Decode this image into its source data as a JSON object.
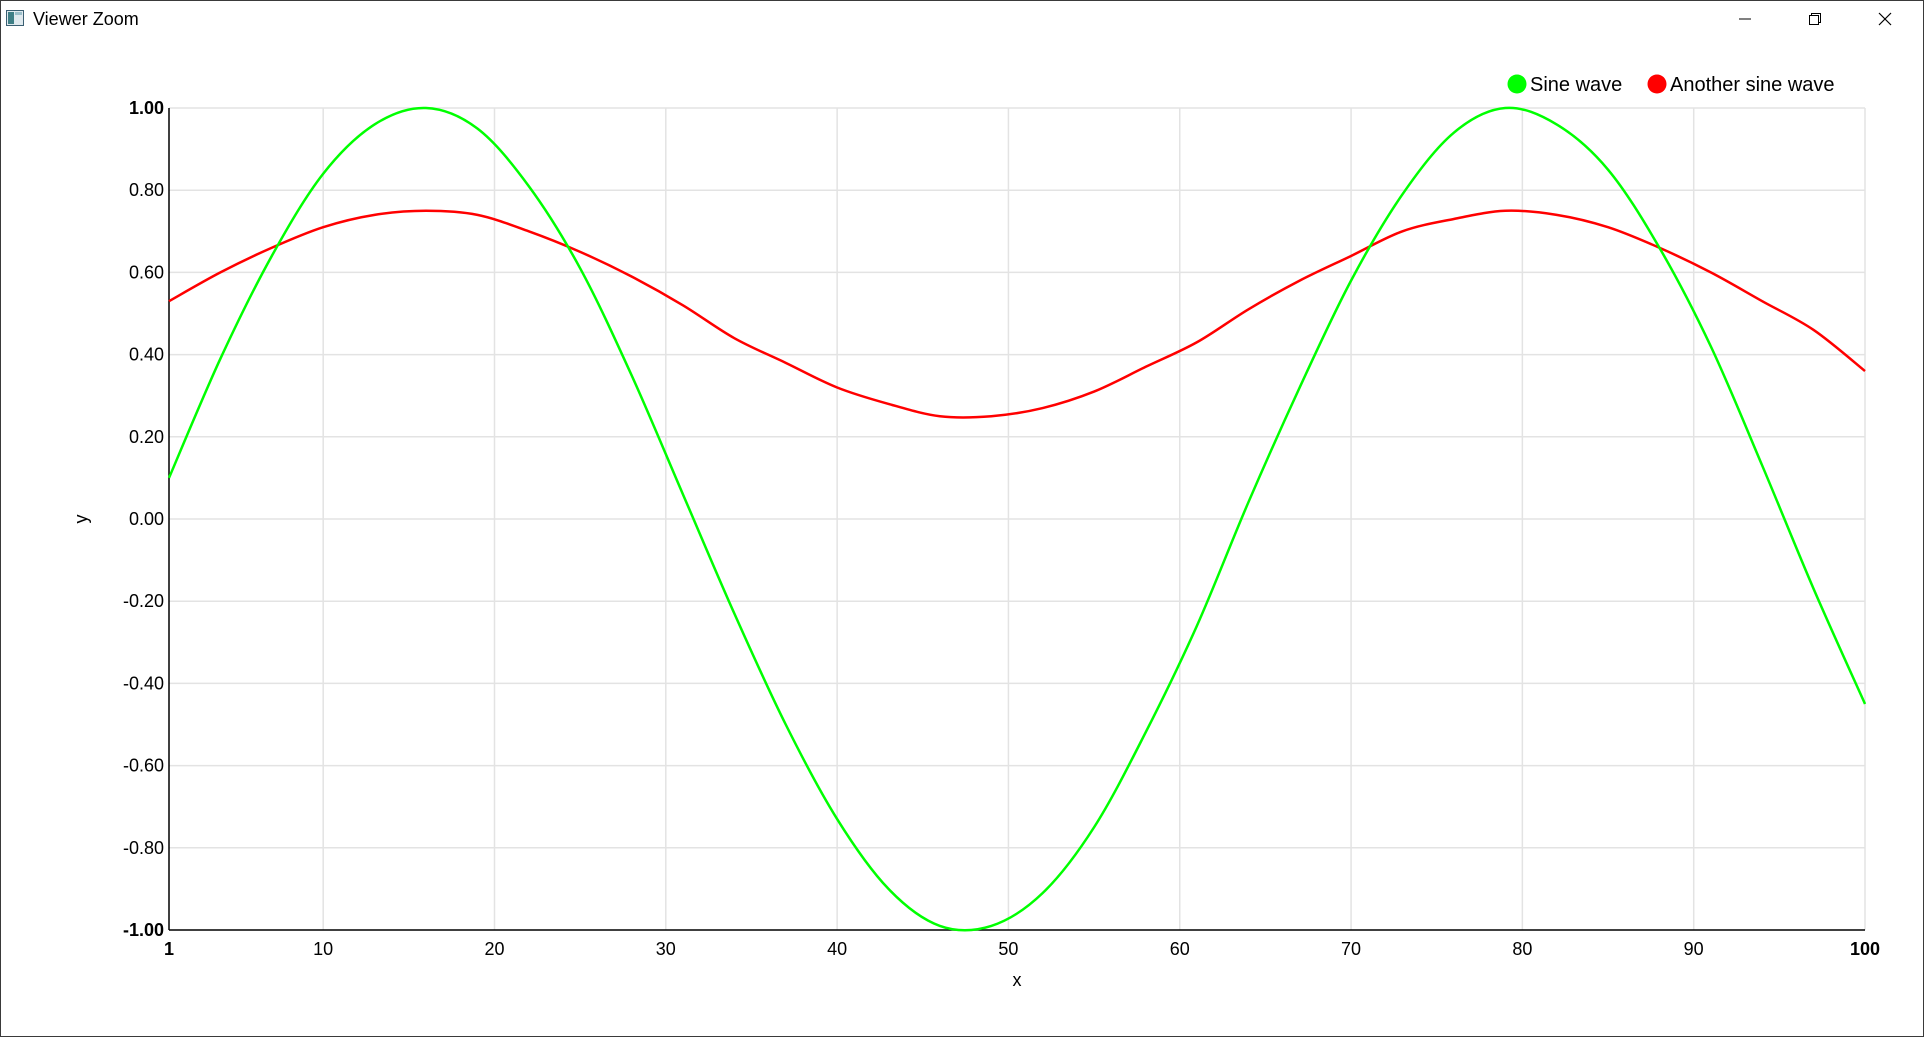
{
  "window": {
    "title": "Viewer Zoom",
    "icons": {
      "app": "app-window-icon",
      "minimize": "minimize-icon",
      "restore": "restore-icon",
      "close": "close-icon"
    }
  },
  "chart_data": {
    "type": "line",
    "title": "",
    "xlabel": "x",
    "ylabel": "y",
    "xlim": [
      1,
      100
    ],
    "ylim": [
      -1.0,
      1.0
    ],
    "grid": true,
    "legend_position": "top-right",
    "x_ticks": [
      1,
      10,
      20,
      30,
      40,
      50,
      60,
      70,
      80,
      90,
      100
    ],
    "x_tick_labels": [
      "1",
      "10",
      "20",
      "30",
      "40",
      "50",
      "60",
      "70",
      "80",
      "90",
      "100"
    ],
    "y_ticks": [
      1.0,
      0.8,
      0.6,
      0.4,
      0.2,
      0.0,
      -0.2,
      -0.4,
      -0.6,
      -0.8,
      -1.0
    ],
    "y_tick_labels": [
      "1.00",
      "0.80",
      "0.60",
      "0.40",
      "0.20",
      "0.00",
      "-0.20",
      "-0.40",
      "-0.60",
      "-0.80",
      "-1.00"
    ],
    "x": [
      1,
      4,
      7,
      10,
      13,
      16,
      19,
      22,
      25,
      28,
      31,
      34,
      37,
      40,
      43,
      46,
      49,
      52,
      55,
      58,
      61,
      64,
      67,
      70,
      73,
      76,
      79,
      82,
      85,
      88,
      91,
      94,
      97,
      100
    ],
    "series": [
      {
        "name": "Sine wave",
        "color": "#00ff00",
        "values": [
          0.1,
          0.39,
          0.64,
          0.84,
          0.96,
          1.0,
          0.95,
          0.81,
          0.61,
          0.35,
          0.06,
          -0.23,
          -0.5,
          -0.73,
          -0.9,
          -0.99,
          -0.99,
          -0.91,
          -0.75,
          -0.52,
          -0.26,
          0.04,
          0.32,
          0.58,
          0.79,
          0.94,
          1.0,
          0.96,
          0.85,
          0.66,
          0.42,
          0.13,
          -0.17,
          -0.45
        ]
      },
      {
        "name": "Another sine wave",
        "color": "#ff0000",
        "values": [
          0.53,
          0.6,
          0.66,
          0.71,
          0.74,
          0.75,
          0.74,
          0.7,
          0.65,
          0.59,
          0.52,
          0.44,
          0.38,
          0.32,
          0.28,
          0.25,
          0.25,
          0.27,
          0.31,
          0.37,
          0.43,
          0.51,
          0.58,
          0.64,
          0.7,
          0.73,
          0.75,
          0.74,
          0.71,
          0.66,
          0.6,
          0.53,
          0.46,
          0.36
        ]
      }
    ]
  }
}
